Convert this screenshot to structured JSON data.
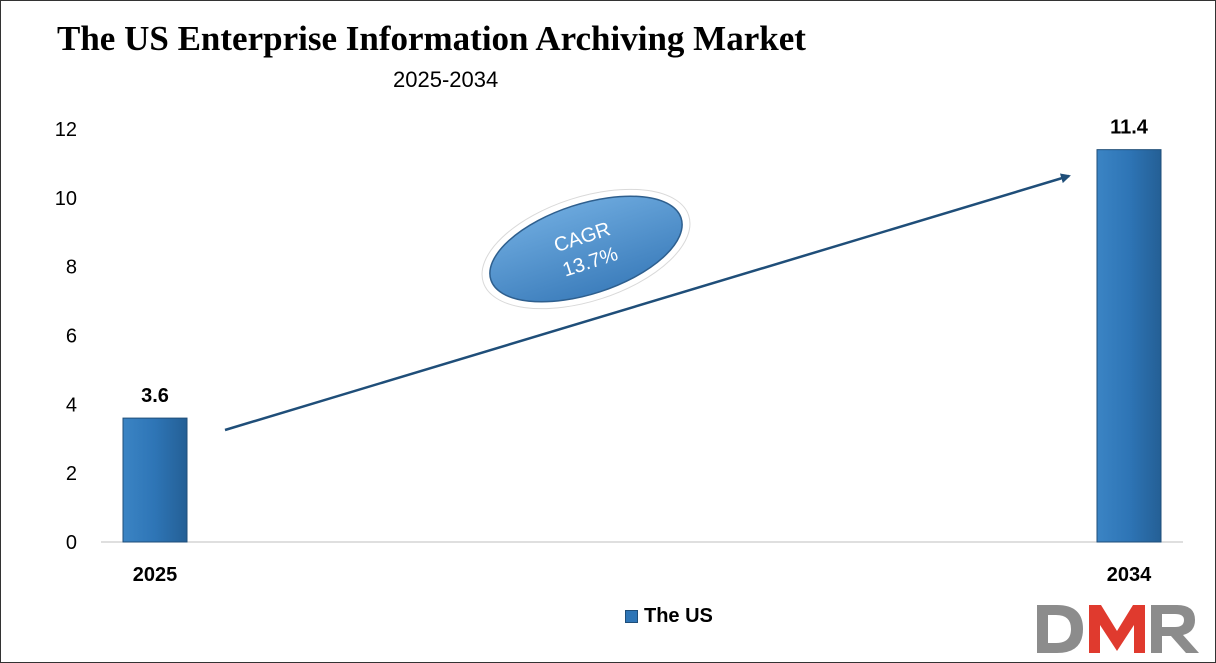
{
  "chart_data": {
    "type": "bar",
    "title": "The US Enterprise Information Archiving Market",
    "subtitle": "2025-2034",
    "categories": [
      "2025",
      "2034"
    ],
    "series": [
      {
        "name": "The US",
        "values": [
          3.6,
          11.4
        ]
      }
    ],
    "data_labels": [
      "3.6",
      "11.4"
    ],
    "ylim": [
      0,
      12
    ],
    "y_ticks": [
      "0",
      "2",
      "4",
      "6",
      "8",
      "10",
      "12"
    ],
    "grid": false,
    "legend_position": "bottom",
    "annotation": {
      "line1": "CAGR",
      "line2": "13.7%"
    },
    "colors": {
      "bar": "#2e75b6",
      "bar_edge": "#1f4e79",
      "arrow": "#1f4e79",
      "ellipse": "#5b9bd5"
    }
  },
  "logo": {
    "text": "DMR"
  }
}
